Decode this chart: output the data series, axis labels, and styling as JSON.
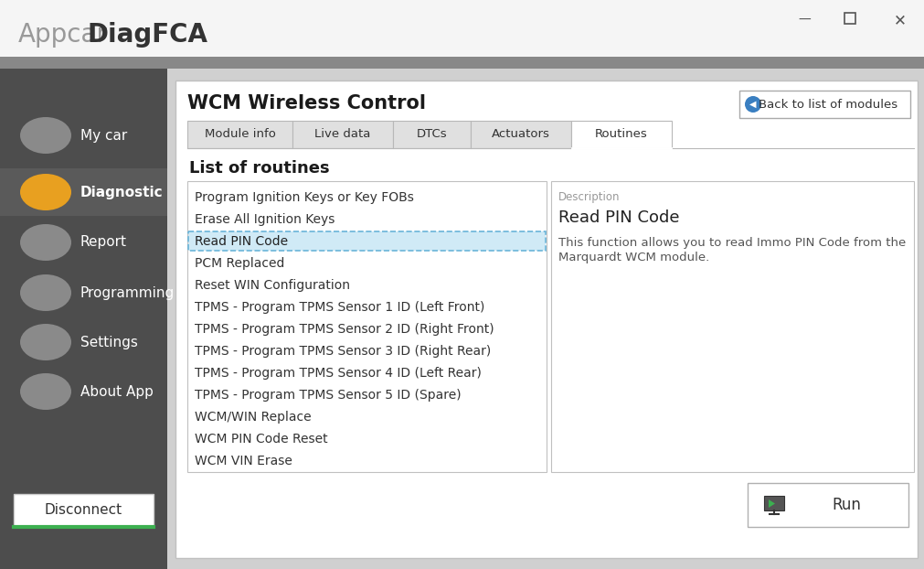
{
  "bg_color": "#555555",
  "header_bg": "#f5f5f5",
  "header_gradient_bottom": "#888888",
  "sidebar_bg": "#4d4d4d",
  "sidebar_active_bg": "#5a5a5a",
  "content_outer_bg": "#c8c8c8",
  "content_panel_bg": "#ffffff",
  "title_text": "Appcar",
  "title_bold": "DiagFCA",
  "title_light_color": "#999999",
  "title_dark_color": "#333333",
  "sidebar_items": [
    "My car",
    "Diagnostic",
    "Report",
    "Programming",
    "Settings",
    "About App"
  ],
  "sidebar_active": 1,
  "sidebar_active_color": "#e8a020",
  "sidebar_inactive_color": "#8a8a8a",
  "disconnect_btn": "Disconnect",
  "disconnect_green": "#3cb050",
  "wcm_title": "WCM Wireless Control",
  "back_btn": "Back to list of modules",
  "back_btn_icon_color": "#3a7fc1",
  "tabs": [
    "Module info",
    "Live data",
    "DTCs",
    "Actuators",
    "Routines"
  ],
  "tab_widths": [
    115,
    110,
    85,
    110,
    110
  ],
  "active_tab": 4,
  "section_title": "List of routines",
  "routines": [
    "Program Ignition Keys or Key FOBs",
    "Erase All Ignition Keys",
    "Read PIN Code",
    "PCM Replaced",
    "Reset WIN Configuration",
    "TPMS - Program TPMS Sensor 1 ID (Left Front)",
    "TPMS - Program TPMS Sensor 2 ID (Right Front)",
    "TPMS - Program TPMS Sensor 3 ID (Right Rear)",
    "TPMS - Program TPMS Sensor 4 ID (Left Rear)",
    "TPMS - Program TPMS Sensor 5 ID (Spare)",
    "WCM/WIN Replace",
    "WCM PIN Code Reset",
    "WCM VIN Erase"
  ],
  "selected_routine": 2,
  "selected_routine_bg": "#d0eaf6",
  "selected_routine_border": "#6ab4d8",
  "desc_label": "Description",
  "desc_title": "Read PIN Code",
  "desc_text_line1": "This function allows you to read Immo PIN Code from the",
  "desc_text_line2": "Marquardt WCM module.",
  "run_btn": "Run",
  "panel_border": "#c0c0c0",
  "tab_bg_inactive": "#e0e0e0",
  "tab_bg_active": "#ffffff",
  "tab_border_color": "#b8b8b8",
  "list_border": "#c0c0c0",
  "routine_text_color": "#333333",
  "desc_label_color": "#999999",
  "desc_title_color": "#222222",
  "desc_body_color": "#555555",
  "run_btn_border": "#b0b0b0"
}
